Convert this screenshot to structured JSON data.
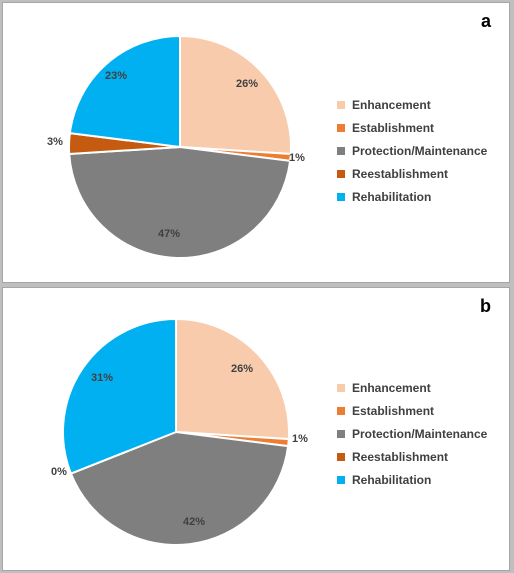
{
  "chart_data": [
    {
      "type": "pie",
      "panel_label": "a",
      "slices": [
        {
          "label": "Enhancement",
          "value": 26,
          "value_label": "26%"
        },
        {
          "label": "Establishment",
          "value": 1,
          "value_label": "1%"
        },
        {
          "label": "Protection/Maintenance",
          "value": 47,
          "value_label": "47%"
        },
        {
          "label": "Reestablishment",
          "value": 3,
          "value_label": "3%"
        },
        {
          "label": "Rehabilitation",
          "value": 23,
          "value_label": "23%"
        }
      ],
      "legend_position": "right"
    },
    {
      "type": "pie",
      "panel_label": "b",
      "slices": [
        {
          "label": "Enhancement",
          "value": 26,
          "value_label": "26%"
        },
        {
          "label": "Establishment",
          "value": 1,
          "value_label": "1%"
        },
        {
          "label": "Protection/Maintenance",
          "value": 42,
          "value_label": "42%"
        },
        {
          "label": "Reestablishment",
          "value": 0,
          "value_label": "0%"
        },
        {
          "label": "Rehabilitation",
          "value": 31,
          "value_label": "31%"
        }
      ],
      "legend_position": "right"
    }
  ],
  "colors": {
    "Enhancement": "#f8cbad",
    "Establishment": "#ed7d31",
    "Protection/Maintenance": "#7f7f7f",
    "Reestablishment": "#c55a11",
    "Rehabilitation": "#00b0f0"
  }
}
